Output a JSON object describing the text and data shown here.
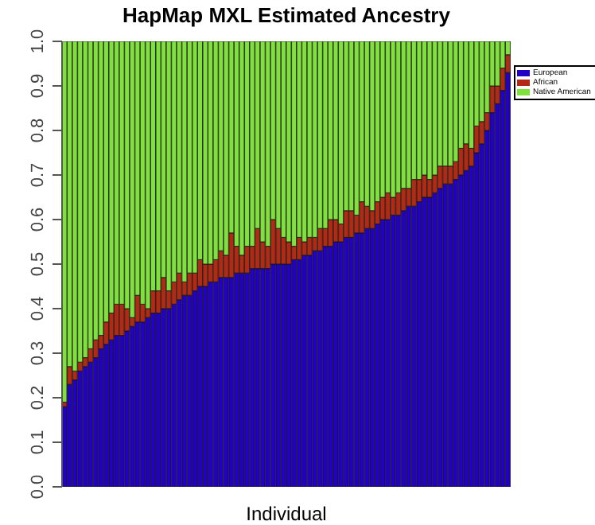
{
  "chart_data": {
    "type": "bar",
    "title": "HapMap MXL Estimated Ancestry",
    "xlabel": "Individual",
    "stacked": true,
    "legend": "top right",
    "tick_labels": "y",
    "categories": [
      null,
      null,
      null,
      null,
      null,
      null,
      null,
      null,
      null,
      null,
      null,
      null,
      null,
      null,
      null,
      null,
      null,
      null,
      null,
      null,
      null,
      null,
      null,
      null,
      null,
      null,
      null,
      null,
      null,
      null,
      null,
      null,
      null,
      null,
      null,
      null,
      null,
      null,
      null,
      null,
      null,
      null,
      null,
      null,
      null,
      null,
      null,
      null,
      null,
      null,
      null,
      null,
      null,
      null,
      null,
      null,
      null,
      null,
      null,
      null,
      null,
      null,
      null,
      null,
      null,
      null,
      null,
      null,
      null,
      null,
      null,
      null,
      null,
      null,
      null,
      null,
      null,
      null,
      null,
      null,
      null,
      null,
      null,
      null,
      null,
      null
    ],
    "ylim": [
      0,
      1
    ],
    "yticks": [
      {
        "value": 0,
        "label": "0.0"
      },
      0.1,
      0.2,
      0.3,
      0.4,
      0.5,
      0.6,
      0.7,
      0.8,
      0.9,
      {
        "value": 1,
        "label": "1.0"
      }
    ],
    "series": [
      {
        "name": "European",
        "color": "#2200c4",
        "values": [
          0.18,
          0.23,
          0.24,
          0.26,
          0.27,
          0.28,
          0.29,
          0.31,
          0.32,
          0.33,
          0.34,
          0.34,
          0.35,
          0.36,
          0.37,
          0.37,
          0.38,
          0.39,
          0.39,
          0.4,
          0.4,
          0.41,
          0.42,
          0.43,
          0.43,
          0.44,
          0.45,
          0.45,
          0.46,
          0.46,
          0.47,
          0.47,
          0.47,
          0.48,
          0.48,
          0.48,
          0.49,
          0.49,
          0.49,
          0.49,
          0.5,
          0.5,
          0.5,
          0.5,
          0.51,
          0.51,
          0.52,
          0.52,
          0.53,
          0.53,
          0.54,
          0.54,
          0.55,
          0.55,
          0.56,
          0.56,
          0.57,
          0.57,
          0.58,
          0.58,
          0.59,
          0.6,
          0.6,
          0.61,
          0.61,
          0.62,
          0.63,
          0.63,
          0.64,
          0.65,
          0.65,
          0.66,
          0.67,
          0.68,
          0.68,
          0.69,
          0.7,
          0.71,
          0.72,
          0.75,
          0.77,
          0.8,
          0.84,
          0.86,
          0.89,
          0.93
        ]
      },
      {
        "name": "African",
        "color": "#b02a14",
        "values": [
          0.01,
          0.04,
          0.02,
          0.02,
          0.02,
          0.03,
          0.04,
          0.03,
          0.05,
          0.06,
          0.07,
          0.07,
          0.05,
          0.02,
          0.06,
          0.04,
          0.02,
          0.05,
          0.05,
          0.07,
          0.04,
          0.05,
          0.06,
          0.03,
          0.05,
          0.04,
          0.06,
          0.05,
          0.04,
          0.05,
          0.06,
          0.05,
          0.1,
          0.06,
          0.04,
          0.06,
          0.05,
          0.09,
          0.06,
          0.05,
          0.1,
          0.08,
          0.06,
          0.05,
          0.03,
          0.05,
          0.03,
          0.04,
          0.03,
          0.05,
          0.04,
          0.06,
          0.05,
          0.04,
          0.06,
          0.06,
          0.04,
          0.07,
          0.05,
          0.04,
          0.05,
          0.05,
          0.06,
          0.04,
          0.05,
          0.05,
          0.04,
          0.06,
          0.05,
          0.05,
          0.04,
          0.04,
          0.05,
          0.04,
          0.04,
          0.04,
          0.06,
          0.06,
          0.04,
          0.06,
          0.05,
          0.04,
          0.06,
          0.04,
          0.05,
          0.04
        ]
      },
      {
        "name": "Native American",
        "color": "#80e03c",
        "values": [
          0.81,
          0.73,
          0.74,
          0.72,
          0.71,
          0.69,
          0.67,
          0.66,
          0.63,
          0.61,
          0.59,
          0.59,
          0.6,
          0.62,
          0.57,
          0.59,
          0.6,
          0.56,
          0.56,
          0.53,
          0.56,
          0.54,
          0.52,
          0.54,
          0.52,
          0.52,
          0.49,
          0.5,
          0.5,
          0.49,
          0.47,
          0.48,
          0.43,
          0.46,
          0.48,
          0.46,
          0.46,
          0.42,
          0.45,
          0.46,
          0.4,
          0.42,
          0.44,
          0.45,
          0.46,
          0.44,
          0.45,
          0.44,
          0.44,
          0.42,
          0.42,
          0.4,
          0.4,
          0.41,
          0.38,
          0.38,
          0.39,
          0.36,
          0.37,
          0.38,
          0.36,
          0.35,
          0.34,
          0.35,
          0.34,
          0.33,
          0.33,
          0.31,
          0.31,
          0.3,
          0.31,
          0.3,
          0.28,
          0.28,
          0.28,
          0.27,
          0.24,
          0.23,
          0.24,
          0.19,
          0.18,
          0.16,
          0.1,
          0.1,
          0.06,
          0.03
        ]
      }
    ]
  }
}
